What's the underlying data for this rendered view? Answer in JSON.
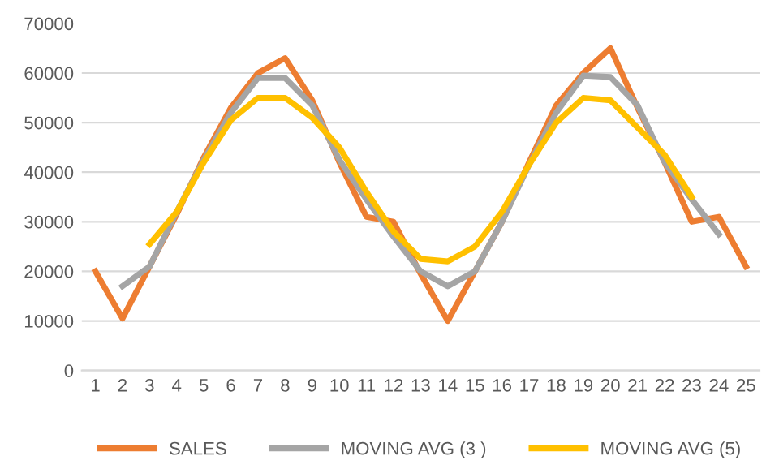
{
  "chart_data": {
    "type": "line",
    "categories": [
      "1",
      "2",
      "3",
      "4",
      "5",
      "6",
      "7",
      "8",
      "9",
      "10",
      "11",
      "12",
      "13",
      "14",
      "15",
      "16",
      "17",
      "18",
      "19",
      "20",
      "21",
      "22",
      "23",
      "24",
      "25"
    ],
    "series": [
      {
        "name": "SALES",
        "color": "#ed7d31",
        "values": [
          20000,
          10500,
          21000,
          31500,
          43000,
          53000,
          60000,
          63000,
          54500,
          42000,
          31000,
          30000,
          19500,
          10000,
          20000,
          30000,
          42000,
          53500,
          60000,
          65000,
          53000,
          42000,
          30000,
          31000,
          21000
        ]
      },
      {
        "name": "MOVING AVG (3 )",
        "color": "#a5a5a5",
        "values": [
          null,
          17000,
          21000,
          32000,
          42500,
          52000,
          59000,
          59000,
          53500,
          42500,
          34500,
          27000,
          20000,
          17000,
          20000,
          30000,
          41500,
          52000,
          59500,
          59200,
          53500,
          42000,
          34500,
          27500,
          null
        ]
      },
      {
        "name": "MOVING AVG (5)",
        "color": "#ffc000",
        "values": [
          null,
          null,
          25500,
          32000,
          42000,
          50500,
          55000,
          55000,
          51000,
          45000,
          36000,
          28000,
          22500,
          22000,
          25000,
          32000,
          41500,
          50000,
          55000,
          54500,
          49000,
          43500,
          35000,
          null,
          null
        ]
      }
    ],
    "ylim": [
      0,
      70000
    ],
    "yticks": [
      0,
      10000,
      20000,
      30000,
      40000,
      50000,
      60000,
      70000
    ],
    "grid": "y",
    "legend": "bottom",
    "marker": "none",
    "line_style": "solid"
  }
}
